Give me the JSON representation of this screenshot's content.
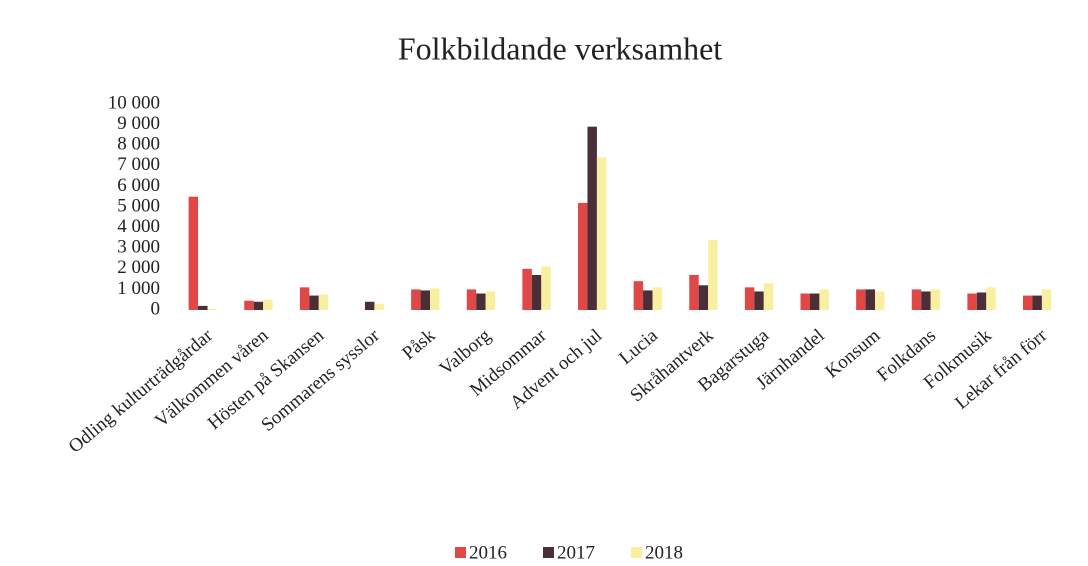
{
  "chart_data": {
    "type": "bar",
    "title": "Folkbildande verksamhet",
    "categories": [
      "Odling kulturträdgårdar",
      "Välkommen våren",
      "Hösten på Skansen",
      "Sommarens sysslor",
      "Påsk",
      "Valborg",
      "Midsommar",
      "Advent och jul",
      "Lucia",
      "Skråhantverk",
      "Bagarstuga",
      "Järnhandel",
      "Konsum",
      "Folkdans",
      "Folkmusik",
      "Lekar från förr"
    ],
    "series": [
      {
        "name": "2016",
        "color": "#e04848",
        "values": [
          5500,
          450,
          1100,
          0,
          1000,
          1000,
          2000,
          5200,
          1400,
          1700,
          1100,
          800,
          1000,
          1000,
          800,
          700
        ]
      },
      {
        "name": "2017",
        "color": "#4a2e38",
        "values": [
          200,
          400,
          700,
          400,
          950,
          800,
          1700,
          8900,
          950,
          1200,
          900,
          800,
          1000,
          900,
          850,
          700
        ]
      },
      {
        "name": "2018",
        "color": "#f8f0a0",
        "values": [
          50,
          500,
          750,
          300,
          1050,
          900,
          2100,
          7400,
          1100,
          3400,
          1300,
          1000,
          900,
          1000,
          1100,
          1000
        ]
      }
    ],
    "ylim": [
      0,
      10000
    ],
    "yticks": [
      0,
      {
        "value": 1000,
        "label": "1 000"
      },
      {
        "value": 2000,
        "label": "2 000"
      },
      {
        "value": 3000,
        "label": "3 000"
      },
      {
        "value": 4000,
        "label": "4 000"
      },
      {
        "value": 5000,
        "label": "5 000"
      },
      {
        "value": 6000,
        "label": "6 000"
      },
      {
        "value": 7000,
        "label": "7 000"
      },
      {
        "value": 8000,
        "label": "8 000"
      },
      {
        "value": 9000,
        "label": "9 000"
      },
      {
        "value": 10000,
        "label": "10 000"
      }
    ],
    "grid": false,
    "legend": "bottom"
  }
}
